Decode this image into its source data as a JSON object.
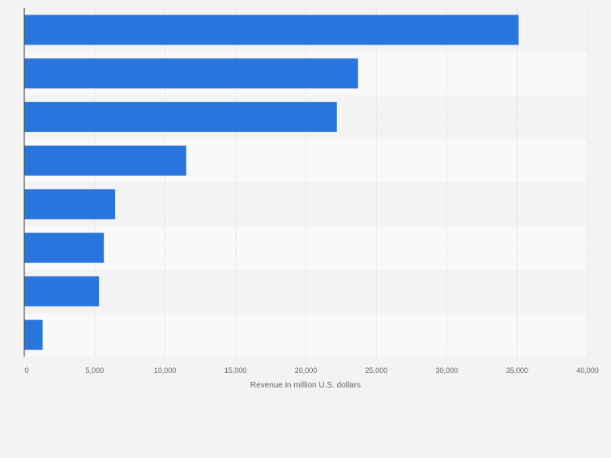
{
  "chart_data": {
    "type": "bar",
    "orientation": "horizontal",
    "categories": [
      "",
      "",
      "",
      "",
      "",
      "",
      "",
      ""
    ],
    "values": [
      35100,
      23700,
      22200,
      11500,
      6450,
      5650,
      5300,
      1300
    ],
    "title": "",
    "xlabel": "Revenue in million U.S. dollars",
    "ylabel": "",
    "xlim": [
      0,
      40000
    ],
    "ticks": [
      0,
      5000,
      10000,
      15000,
      20000,
      25000,
      30000,
      35000,
      40000
    ],
    "tick_labels": [
      "0",
      "5,000",
      "10,000",
      "15,000",
      "20,000",
      "25,000",
      "30,000",
      "35,000",
      "40,000"
    ],
    "grid": true,
    "legend": "none"
  },
  "colors": {
    "bar": "#2876dd",
    "background": "#f3f3f3",
    "band_dark": "#f3f3f3",
    "band_light": "#f9f9f9",
    "grid": "#dcdcdc",
    "axis": "#333333",
    "text": "#666666"
  }
}
